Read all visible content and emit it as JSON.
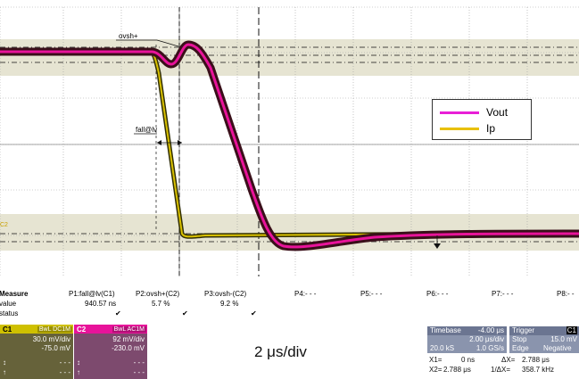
{
  "colors": {
    "vout": "#e8139a",
    "vout_dark": "#3a0f1a",
    "ip": "#d8c000",
    "ip_dark": "#323004",
    "band": "#e6e4d2",
    "grid": "#a0a0a0"
  },
  "waveform": {
    "cursor_labels": {
      "ovsh": "ovsh+",
      "fall": "fall@lv",
      "c2_marker": "C2"
    }
  },
  "legend": {
    "vout": "Vout",
    "ip": "Ip"
  },
  "measure": {
    "header": "Measure",
    "value_label": "value",
    "status_label": "status",
    "params": [
      {
        "name": "P1:fall@lv(C1)",
        "value": "940.57 ns",
        "status": "✔"
      },
      {
        "name": "P2:ovsh+(C2)",
        "value": "5.7 %",
        "status": "✔"
      },
      {
        "name": "P3:ovsh-(C2)",
        "value": "9.2 %",
        "status": "✔"
      },
      {
        "name": "P4:- - -",
        "value": "",
        "status": ""
      },
      {
        "name": "P5:- - -",
        "value": "",
        "status": ""
      },
      {
        "name": "P6:- - -",
        "value": "",
        "status": ""
      },
      {
        "name": "P7:- - -",
        "value": "",
        "status": ""
      },
      {
        "name": "P8:- -",
        "value": "",
        "status": ""
      }
    ]
  },
  "channels": [
    {
      "tag": "C1",
      "coupling": "BwL DC1M",
      "scale": "30.0 mV/div",
      "offset": "-75.0 mV",
      "line1": "- - -",
      "line2": "- - -",
      "bg": "#66623a",
      "hdr": "#cfc000",
      "cpbg": "#9a9000"
    },
    {
      "tag": "C2",
      "coupling": "BwL AC1M",
      "scale": "92 mV/div",
      "offset": "-230.0 mV",
      "line1": "- - -",
      "line2": "- - -",
      "bg": "#7d4a6e",
      "hdr": "#e8139a",
      "cpbg": "#b01075"
    }
  ],
  "time_div": "2 μs/div",
  "timebase": {
    "title": "Timebase",
    "delay": "-4.00 μs",
    "per_div": "2.00 μs/div",
    "samples": "20.0 kS",
    "rate": "1.0 GS/s"
  },
  "trigger": {
    "title": "Trigger",
    "source": "C1",
    "mode": "Stop",
    "level": "15.0 mV",
    "type": "Edge",
    "slope": "Negative"
  },
  "cursors": {
    "x1": "X1=",
    "x1v": "0 ns",
    "dx": "ΔX=",
    "dxv": "2.788 μs",
    "x2": "X2=",
    "x2v": "2.788 μs",
    "inv": "1/ΔX=",
    "invv": "358.7 kHz"
  }
}
